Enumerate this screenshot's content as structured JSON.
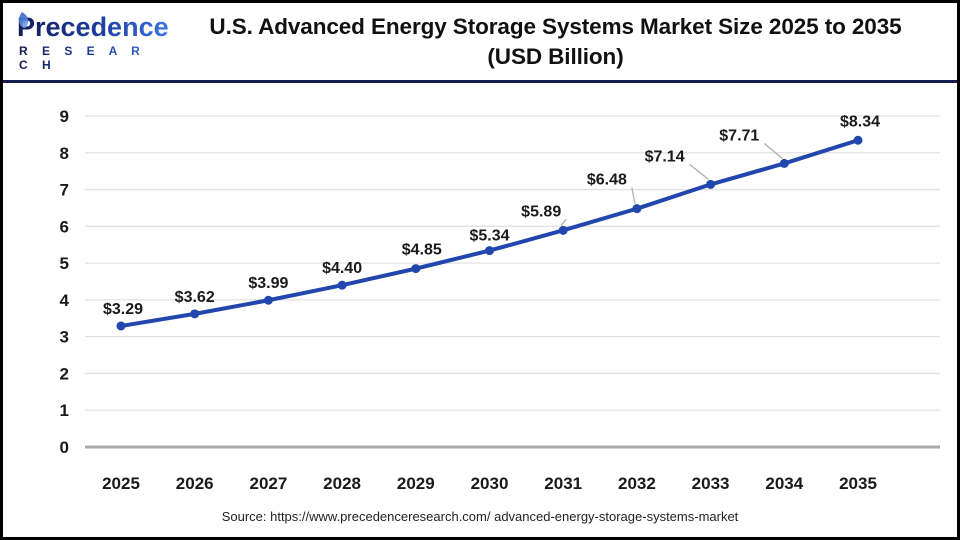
{
  "header": {
    "logo": {
      "brand": "Precedence",
      "sub": "R E S E A R C H"
    },
    "title_line1": "U.S. Advanced Energy Storage Systems Market Size 2025 to 2035",
    "title_line2": "(USD Billion)"
  },
  "footer": {
    "source": "Source: https://www.precedenceresearch.com/ advanced-energy-storage-systems-market"
  },
  "colors": {
    "line": "#2146ad",
    "marker": "#2146ad",
    "grid": "#e2e2e2",
    "zero_axis": "#a9a9a9",
    "leader": "#b4b4b4",
    "divider": "#171c4f",
    "text": "#1a1a1a"
  },
  "chart_data": {
    "type": "line",
    "title": "U.S. Advanced Energy Storage Systems Market Size 2025 to 2035 (USD Billion)",
    "categories": [
      "2025",
      "2026",
      "2027",
      "2028",
      "2029",
      "2030",
      "2031",
      "2032",
      "2033",
      "2034",
      "2035"
    ],
    "series": [
      {
        "name": "U.S. Advanced Energy Storage Systems Market Size (USD Billion)",
        "values": [
          3.29,
          3.62,
          3.99,
          4.4,
          4.85,
          5.34,
          5.89,
          6.48,
          7.14,
          7.71,
          8.34
        ]
      }
    ],
    "point_labels": [
      "$3.29",
      "$3.62",
      "$3.99",
      "$4.40",
      "$4.85",
      "$5.34",
      "$5.89",
      "$6.48",
      "$7.14",
      "$7.71",
      "$8.34"
    ],
    "xlabel": "",
    "ylabel": "",
    "ylim": [
      0,
      9
    ],
    "ytick_interval": 1,
    "yticks": [
      0,
      1,
      2,
      3,
      4,
      5,
      6,
      7,
      8,
      9
    ],
    "grid": "horizontal",
    "legend": "none",
    "line_color": "#2146ad"
  }
}
